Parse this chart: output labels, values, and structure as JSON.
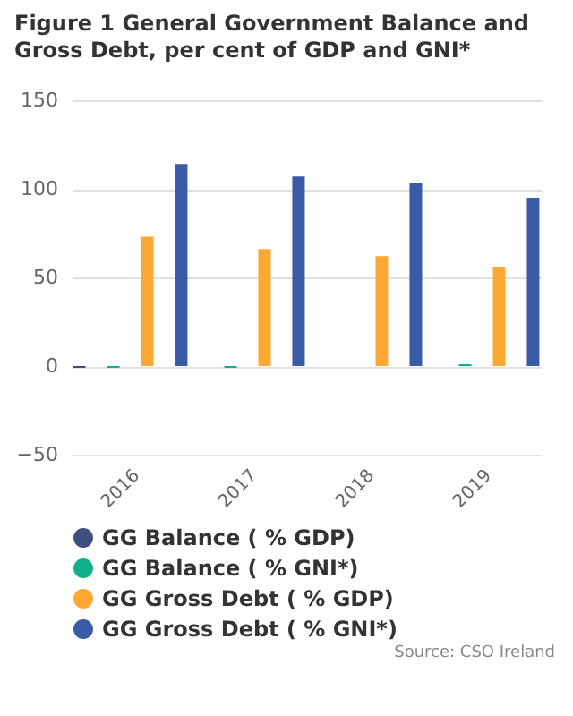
{
  "chart_data": {
    "type": "bar",
    "title": "Figure 1 General Government Balance and Gross Debt, per cent of GDP and GNI*",
    "categories": [
      "2016",
      "2017",
      "2018",
      "2019"
    ],
    "series": [
      {
        "name": "GG Balance ( % GDP)",
        "color": "#3e4e7e",
        "values": [
          -1,
          0,
          0,
          0
        ]
      },
      {
        "name": "GG Balance ( % GNI*)",
        "color": "#10b08a",
        "values": [
          -1,
          -1,
          0,
          1
        ]
      },
      {
        "name": "GG Gross Debt ( % GDP)",
        "color": "#fca832",
        "values": [
          73,
          66,
          62,
          56
        ]
      },
      {
        "name": "GG Gross Debt ( % GNI*)",
        "color": "#3a5ba8",
        "values": [
          114,
          107,
          103,
          95
        ]
      }
    ],
    "ylim": [
      -50,
      150
    ],
    "yticks": [
      -50,
      0,
      50,
      100,
      150
    ],
    "grid": "y",
    "legend": "bottom",
    "annotations": [
      "Source: CSO Ireland"
    ]
  }
}
